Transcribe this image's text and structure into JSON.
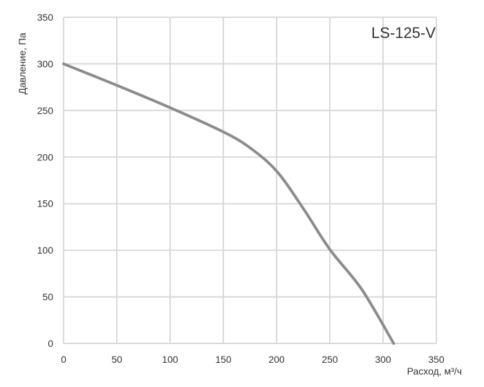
{
  "chart_data": {
    "type": "line",
    "title": "",
    "annotation": "LS-125-V",
    "xlabel": "Расход, м³/ч",
    "ylabel": "Давление, Па",
    "xlim": [
      0,
      350
    ],
    "ylim": [
      0,
      350
    ],
    "x_ticks": [
      "0",
      "50",
      "100",
      "150",
      "200",
      "250",
      "300",
      "350"
    ],
    "y_ticks": [
      "0",
      "50",
      "100",
      "150",
      "200",
      "250",
      "300",
      "350"
    ],
    "grid": true,
    "legend": "none",
    "colors": {
      "grid": "#d9d9d9",
      "line": "#8c8c8c",
      "text": "#333333"
    },
    "series": [
      {
        "x": [
          0,
          50,
          100,
          150,
          175,
          200,
          225,
          250,
          280,
          310
        ],
        "y": [
          300,
          277,
          253,
          227,
          210,
          185,
          145,
          101,
          58,
          0
        ]
      }
    ]
  }
}
